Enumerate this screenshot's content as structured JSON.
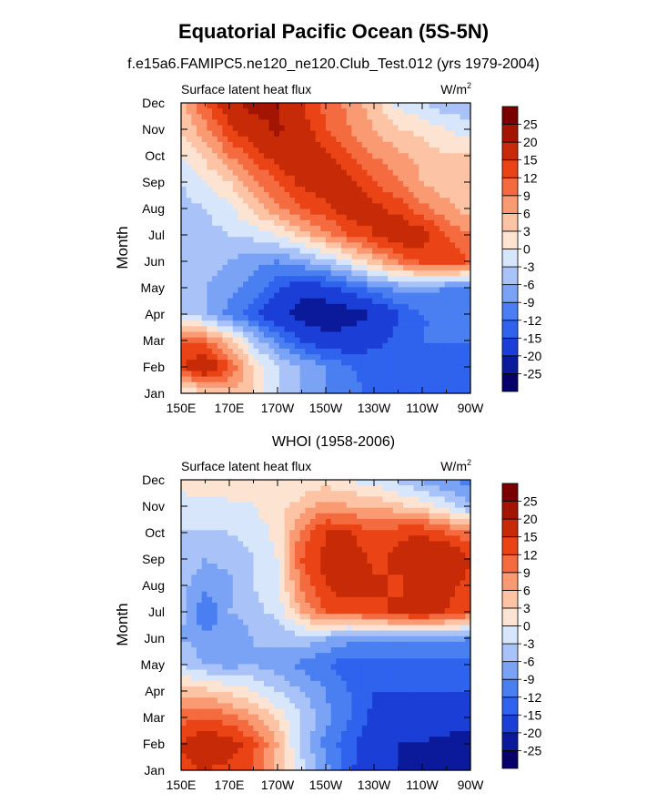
{
  "title": "Equatorial Pacific Ocean (5S-5N)",
  "panels": [
    {
      "subtitle": "f.e15a6.FAMIPC5.ne120_ne120.Club_Test.012 (yrs 1979-2004)",
      "left_label": "Surface latent heat flux",
      "units_base": "W/m",
      "units_exp": "2"
    },
    {
      "subtitle": "WHOI (1958-2006)",
      "left_label": "Surface latent heat flux",
      "units_base": "W/m",
      "units_exp": "2"
    }
  ],
  "colors": {
    "levels": [
      "#08006a",
      "#0a1a9a",
      "#1b3fd6",
      "#2f63ee",
      "#4a7ff2",
      "#7aa3f5",
      "#a9c3f8",
      "#d7e6fb",
      "#fde4d2",
      "#fcc3a4",
      "#fa9a73",
      "#f56b40",
      "#ea4416",
      "#c62a06",
      "#a31402",
      "#7a0000"
    ]
  },
  "chart_data": [
    {
      "type": "heatmap",
      "title": "Surface latent heat flux",
      "units": "W/m2",
      "xlabel": "",
      "ylabel": "Month",
      "x_ticks": [
        "150E",
        "170E",
        "170W",
        "150W",
        "130W",
        "110W",
        "90W"
      ],
      "x_values": [
        150,
        160,
        170,
        180,
        190,
        200,
        210,
        220,
        230,
        240,
        250,
        260,
        270
      ],
      "y_ticks": [
        "Jan",
        "Feb",
        "Mar",
        "Apr",
        "May",
        "Jun",
        "Jul",
        "Aug",
        "Sep",
        "Oct",
        "Nov",
        "Dec"
      ],
      "colorbar_levels": [
        "25",
        "20",
        "15",
        "12",
        "9",
        "6",
        "3",
        "0",
        "-3",
        "-6",
        "-9",
        "-12",
        "-15",
        "-20",
        "-25"
      ],
      "grid": [
        [
          -2,
          3,
          5,
          3,
          -3,
          -6,
          -9,
          -11,
          -13,
          -14,
          -14,
          -14,
          -14
        ],
        [
          14,
          20,
          12,
          3,
          -3,
          -6,
          -9,
          -12,
          -13,
          -14,
          -15,
          -15,
          -15
        ],
        [
          12,
          10,
          4,
          -4,
          -10,
          -15,
          -18,
          -18,
          -16,
          -14,
          -12,
          -12,
          -12
        ],
        [
          -3,
          -6,
          -10,
          -14,
          -19,
          -22,
          -24,
          -22,
          -20,
          -15,
          -12,
          -12,
          -12
        ],
        [
          -4,
          -6,
          -8,
          -10,
          -14,
          -18,
          -16,
          -13,
          -10,
          -8,
          -8,
          -9,
          -9
        ],
        [
          -3,
          -4,
          -6,
          -8,
          -9,
          -7,
          -4,
          0,
          5,
          10,
          13,
          14,
          12
        ],
        [
          -3,
          -4,
          -3,
          -2,
          0,
          4,
          8,
          12,
          15,
          18,
          17,
          12,
          9
        ],
        [
          -4,
          -3,
          -1,
          4,
          8,
          12,
          14,
          18,
          16,
          14,
          10,
          7,
          4
        ],
        [
          -3,
          0,
          3,
          8,
          12,
          16,
          18,
          16,
          12,
          9,
          6,
          4,
          3
        ],
        [
          0,
          4,
          9,
          13,
          17,
          19,
          16,
          12,
          9,
          7,
          5,
          3,
          3
        ],
        [
          3,
          8,
          14,
          18,
          21,
          17,
          12,
          9,
          6,
          3,
          2,
          0,
          -2
        ],
        [
          5,
          12,
          18,
          22,
          20,
          15,
          11,
          8,
          4,
          -1,
          -3,
          -5,
          -5
        ]
      ]
    },
    {
      "type": "heatmap",
      "title": "Surface latent heat flux",
      "units": "W/m2",
      "xlabel": "",
      "ylabel": "Month",
      "x_ticks": [
        "150E",
        "170E",
        "170W",
        "150W",
        "130W",
        "110W",
        "90W"
      ],
      "x_values": [
        150,
        160,
        170,
        180,
        190,
        200,
        210,
        220,
        230,
        240,
        250,
        260,
        270
      ],
      "y_ticks": [
        "Jan",
        "Feb",
        "Mar",
        "Apr",
        "May",
        "Jun",
        "Jul",
        "Aug",
        "Sep",
        "Oct",
        "Nov",
        "Dec"
      ],
      "colorbar_levels": [
        "25",
        "20",
        "15",
        "12",
        "9",
        "6",
        "3",
        "0",
        "-3",
        "-6",
        "-9",
        "-12",
        "-15",
        "-20",
        "-25"
      ],
      "grid": [
        [
          14,
          15,
          14,
          12,
          5,
          -2,
          -8,
          -14,
          -20,
          -20,
          -21,
          -21,
          -22
        ],
        [
          15,
          18,
          17,
          13,
          6,
          -4,
          -10,
          -14,
          -18,
          -20,
          -20,
          -21,
          -22
        ],
        [
          11,
          12,
          10,
          7,
          2,
          -3,
          -8,
          -12,
          -16,
          -18,
          -18,
          -18,
          -18
        ],
        [
          4,
          4,
          2,
          0,
          -3,
          -6,
          -9,
          -12,
          -15,
          -15,
          -15,
          -15,
          -15
        ],
        [
          -3,
          -6,
          -7,
          -6,
          -8,
          -10,
          -12,
          -14,
          -14,
          -13,
          -13,
          -13,
          -13
        ],
        [
          -6,
          -8,
          -9,
          -6,
          -5,
          -4,
          -6,
          -8,
          -8,
          -8,
          -8,
          -8,
          -9
        ],
        [
          -5,
          -12,
          -6,
          -4,
          -2,
          6,
          12,
          12,
          14,
          16,
          17,
          15,
          12
        ],
        [
          -5,
          -8,
          -7,
          -3,
          -1,
          10,
          15,
          18,
          16,
          14,
          18,
          16,
          14
        ],
        [
          -4,
          -6,
          -5,
          -3,
          0,
          12,
          16,
          18,
          14,
          16,
          18,
          20,
          15
        ],
        [
          -3,
          -3,
          -3,
          -2,
          1,
          10,
          15,
          15,
          12,
          14,
          15,
          12,
          9
        ],
        [
          -1,
          -1,
          -1,
          0,
          2,
          4,
          8,
          6,
          6,
          4,
          2,
          -1,
          -6
        ],
        [
          1,
          2,
          3,
          1,
          1,
          1,
          1,
          0,
          -2,
          -4,
          -7,
          -9,
          -10
        ]
      ]
    }
  ]
}
